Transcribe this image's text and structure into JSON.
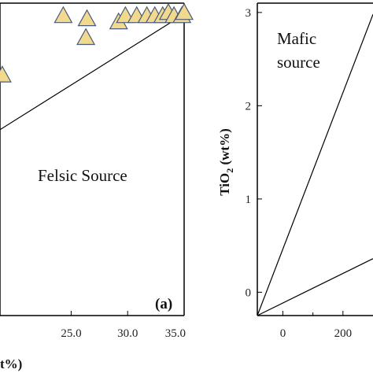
{
  "chart_data": [
    {
      "type": "scatter",
      "panel_label": "(a)",
      "xlabel": "t%)",
      "ylabel": "",
      "xlim": [
        18.7,
        35.0
      ],
      "ylim": [
        0,
        100
      ],
      "x_ticks": [
        "25.0",
        "30.0",
        "35.0"
      ],
      "annotations": [
        {
          "text": "Felsic Source"
        }
      ],
      "boundary_line": {
        "x": [
          18.7,
          35.0
        ],
        "y": [
          59.5,
          96.5
        ]
      },
      "marker": {
        "shape": "triangle",
        "fill": "#f1d98e",
        "stroke": "#4a5a7a"
      },
      "points": [
        {
          "x": 18.9,
          "y": 77
        },
        {
          "x": 24.3,
          "y": 96
        },
        {
          "x": 26.4,
          "y": 95
        },
        {
          "x": 26.3,
          "y": 89
        },
        {
          "x": 29.2,
          "y": 94
        },
        {
          "x": 29.8,
          "y": 96
        },
        {
          "x": 30.8,
          "y": 96
        },
        {
          "x": 31.7,
          "y": 96
        },
        {
          "x": 32.4,
          "y": 96
        },
        {
          "x": 33.1,
          "y": 96
        },
        {
          "x": 33.6,
          "y": 97
        },
        {
          "x": 34.1,
          "y": 96
        },
        {
          "x": 34.8,
          "y": 96
        },
        {
          "x": 35.0,
          "y": 97
        }
      ]
    },
    {
      "type": "line",
      "ylabel": "TiO2 (wt%)",
      "ylabel_parts": {
        "main": "TiO",
        "sub": "2",
        "rest": " (wt%)"
      },
      "xlim": [
        -85,
        300
      ],
      "ylim": [
        -0.25,
        3.1
      ],
      "x_ticks": [
        {
          "value": 0,
          "label": "0"
        },
        {
          "value": 200,
          "label": "200"
        }
      ],
      "x_minor": [
        100
      ],
      "y_ticks": [
        {
          "value": 0,
          "label": "0"
        },
        {
          "value": 1,
          "label": "1"
        },
        {
          "value": 2,
          "label": "2"
        },
        {
          "value": 3,
          "label": "3"
        }
      ],
      "annotations": [
        {
          "text": "Mafic"
        },
        {
          "text": "source"
        }
      ],
      "lines": [
        {
          "x": [
            -85,
            300
          ],
          "y": [
            -0.25,
            2.98
          ]
        },
        {
          "x": [
            -85,
            300
          ],
          "y": [
            -0.25,
            0.36
          ]
        }
      ]
    }
  ]
}
